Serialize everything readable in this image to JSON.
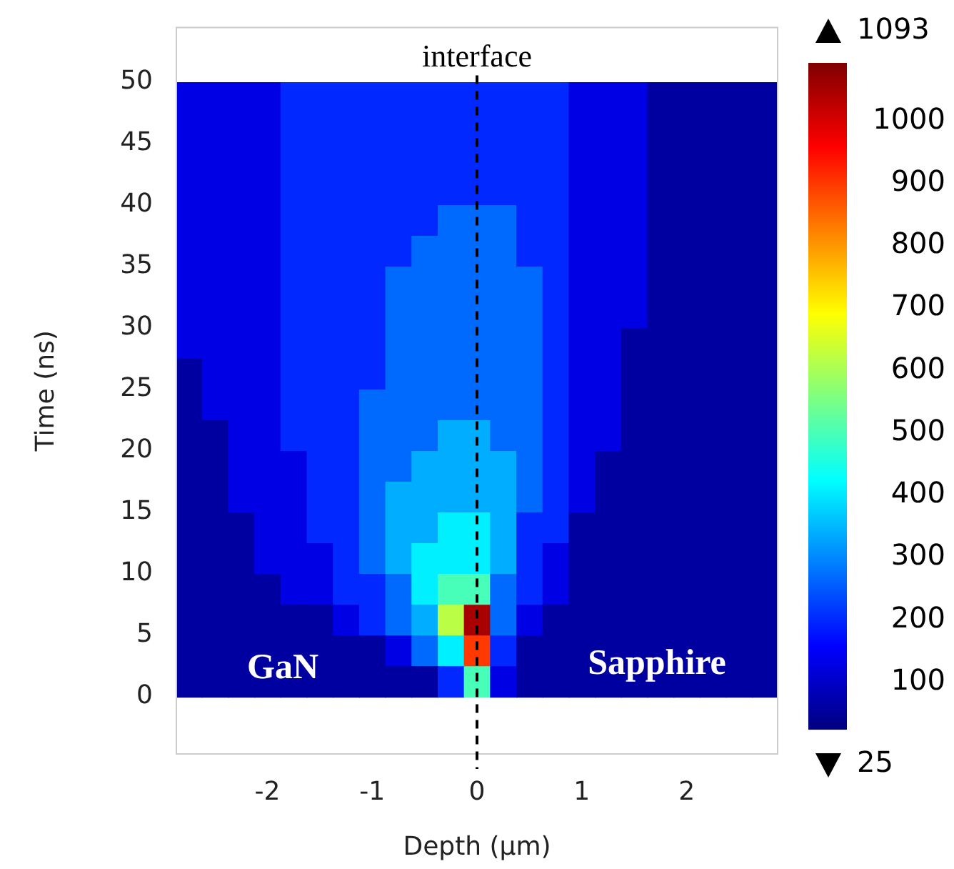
{
  "chart_data": {
    "type": "heatmap",
    "xlabel": "Depth (μm)",
    "ylabel": "Time (ns)",
    "x": [
      -2.75,
      -2.5,
      -2.25,
      -2,
      -1.75,
      -1.5,
      -1.25,
      -1,
      -0.75,
      -0.5,
      -0.25,
      0,
      0.25,
      0.5,
      0.75,
      1,
      1.25,
      1.5,
      1.75,
      2,
      2.25,
      2.5,
      2.75
    ],
    "y": [
      48.75,
      46.25,
      43.75,
      41.25,
      38.75,
      36.25,
      33.75,
      31.25,
      28.75,
      26.25,
      23.75,
      21.25,
      18.75,
      16.25,
      13.75,
      11.25,
      8.75,
      6.25,
      3.75,
      1.25
    ],
    "cells": [
      [
        130,
        130,
        130,
        130,
        200,
        200,
        200,
        200,
        200,
        200,
        200,
        200,
        200,
        200,
        200,
        130,
        130,
        130,
        60,
        60,
        60,
        60,
        60
      ],
      [
        130,
        130,
        130,
        130,
        200,
        200,
        200,
        200,
        200,
        200,
        200,
        200,
        200,
        200,
        200,
        130,
        130,
        130,
        60,
        60,
        60,
        60,
        60
      ],
      [
        130,
        130,
        130,
        130,
        200,
        200,
        200,
        200,
        200,
        200,
        200,
        200,
        200,
        200,
        200,
        130,
        130,
        130,
        60,
        60,
        60,
        60,
        60
      ],
      [
        130,
        130,
        130,
        130,
        200,
        200,
        200,
        200,
        200,
        200,
        200,
        200,
        200,
        200,
        200,
        130,
        130,
        130,
        60,
        60,
        60,
        60,
        60
      ],
      [
        130,
        130,
        130,
        130,
        200,
        200,
        200,
        200,
        200,
        200,
        270,
        270,
        270,
        200,
        200,
        130,
        130,
        130,
        60,
        60,
        60,
        60,
        60
      ],
      [
        130,
        130,
        130,
        130,
        200,
        200,
        200,
        200,
        200,
        270,
        270,
        270,
        270,
        200,
        200,
        130,
        130,
        130,
        60,
        60,
        60,
        60,
        60
      ],
      [
        130,
        130,
        130,
        130,
        200,
        200,
        200,
        200,
        270,
        270,
        270,
        270,
        270,
        270,
        200,
        130,
        130,
        130,
        60,
        60,
        60,
        60,
        60
      ],
      [
        130,
        130,
        130,
        130,
        200,
        200,
        200,
        200,
        270,
        270,
        270,
        270,
        270,
        270,
        200,
        130,
        130,
        130,
        60,
        60,
        60,
        60,
        60
      ],
      [
        130,
        130,
        130,
        130,
        200,
        200,
        200,
        200,
        270,
        270,
        270,
        270,
        270,
        270,
        200,
        130,
        130,
        60,
        60,
        60,
        60,
        60,
        60
      ],
      [
        60,
        130,
        130,
        130,
        200,
        200,
        200,
        200,
        270,
        270,
        270,
        270,
        270,
        270,
        200,
        130,
        130,
        60,
        60,
        60,
        60,
        60,
        60
      ],
      [
        60,
        130,
        130,
        130,
        200,
        200,
        200,
        270,
        270,
        270,
        270,
        270,
        270,
        270,
        200,
        130,
        130,
        60,
        60,
        60,
        60,
        60,
        60
      ],
      [
        60,
        60,
        130,
        130,
        200,
        200,
        200,
        270,
        270,
        270,
        340,
        340,
        270,
        270,
        200,
        130,
        130,
        60,
        60,
        60,
        60,
        60,
        60
      ],
      [
        60,
        60,
        130,
        130,
        130,
        200,
        200,
        270,
        270,
        340,
        340,
        340,
        340,
        270,
        200,
        130,
        60,
        60,
        60,
        60,
        60,
        60,
        60
      ],
      [
        60,
        60,
        130,
        130,
        130,
        200,
        200,
        270,
        340,
        340,
        340,
        340,
        340,
        270,
        200,
        130,
        60,
        60,
        60,
        60,
        60,
        60,
        60
      ],
      [
        60,
        60,
        60,
        130,
        130,
        200,
        200,
        270,
        340,
        340,
        410,
        410,
        340,
        200,
        200,
        60,
        60,
        60,
        60,
        60,
        60,
        60,
        60
      ],
      [
        60,
        60,
        60,
        130,
        130,
        130,
        200,
        270,
        340,
        410,
        410,
        410,
        340,
        200,
        130,
        60,
        60,
        60,
        60,
        60,
        60,
        60,
        60
      ],
      [
        60,
        60,
        60,
        60,
        130,
        130,
        200,
        200,
        270,
        410,
        500,
        500,
        270,
        200,
        130,
        60,
        60,
        60,
        60,
        60,
        60,
        60,
        60
      ],
      [
        60,
        60,
        60,
        60,
        60,
        60,
        130,
        200,
        270,
        340,
        620,
        1050,
        270,
        130,
        60,
        60,
        60,
        60,
        60,
        60,
        60,
        60,
        60
      ],
      [
        60,
        60,
        60,
        60,
        60,
        60,
        60,
        60,
        130,
        270,
        410,
        900,
        200,
        60,
        60,
        60,
        60,
        60,
        60,
        60,
        60,
        60,
        60
      ],
      [
        60,
        60,
        60,
        60,
        60,
        60,
        60,
        60,
        60,
        60,
        200,
        500,
        130,
        60,
        60,
        60,
        60,
        60,
        60,
        60,
        60,
        60,
        60
      ]
    ],
    "xlim": [
      -2.875,
      2.875
    ],
    "ylim": [
      -4.7,
      54.5
    ],
    "xticks": [
      -2,
      -1,
      0,
      1,
      2
    ],
    "yticks": [
      0,
      5,
      10,
      15,
      20,
      25,
      30,
      35,
      40,
      45,
      50
    ],
    "clim": [
      25,
      1093
    ],
    "cticks": [
      100,
      200,
      300,
      400,
      500,
      600,
      700,
      800,
      900,
      1000
    ],
    "ref_lines": [
      {
        "axis": "x",
        "value": 0,
        "label": "interface",
        "color": "#000000",
        "line_style": "dashed"
      }
    ],
    "annotations": [
      "GaN",
      "Sapphire",
      "1093",
      "25"
    ],
    "grid": false,
    "legend": false
  }
}
